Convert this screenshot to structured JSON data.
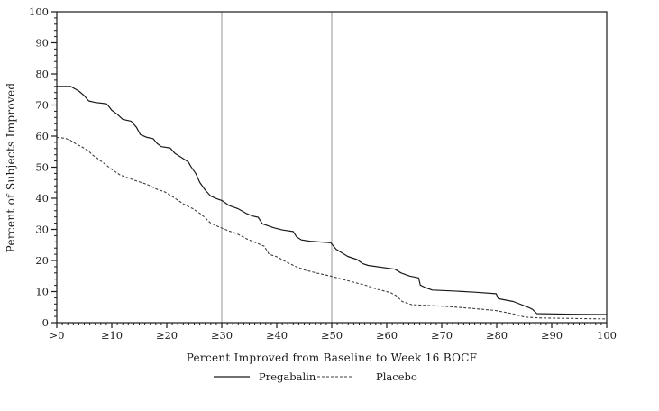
{
  "chart_data": {
    "type": "line",
    "title": "",
    "xlabel": "Percent Improved from Baseline to Week 16 BOCF",
    "ylabel": "Percent of Subjects Improved",
    "xlim": [
      0,
      100
    ],
    "ylim": [
      0,
      100
    ],
    "grid": false,
    "legend_position": "bottom",
    "x_tick_values": [
      0,
      10,
      20,
      30,
      40,
      50,
      60,
      70,
      80,
      90,
      100
    ],
    "x_tick_labels": [
      ">0",
      "≥10",
      "≥20",
      "≥30",
      "≥40",
      "≥50",
      "≥60",
      "≥70",
      "≥80",
      "≥90",
      "100"
    ],
    "y_tick_values": [
      0,
      10,
      20,
      30,
      40,
      50,
      60,
      70,
      80,
      90,
      100
    ],
    "y_tick_labels": [
      "0",
      "10",
      "20",
      "30",
      "40",
      "50",
      "60",
      "70",
      "80",
      "90",
      "100"
    ],
    "x_minor_tick_step": 1,
    "y_minor_tick_step": 2,
    "reference_lines_x": [
      30,
      50
    ],
    "series": [
      {
        "name": "Pregabalin",
        "style": "solid",
        "color": "#1a1a1a",
        "points": [
          [
            0,
            76
          ],
          [
            2.5,
            76
          ],
          [
            4,
            74.5
          ],
          [
            5,
            73
          ],
          [
            5.8,
            71.3
          ],
          [
            7,
            70.8
          ],
          [
            9,
            70.4
          ],
          [
            9.4,
            69.7
          ],
          [
            10,
            68.3
          ],
          [
            11,
            67
          ],
          [
            12,
            65.4
          ],
          [
            13.5,
            64.8
          ],
          [
            14.5,
            62.8
          ],
          [
            15.2,
            60.5
          ],
          [
            16.4,
            59.6
          ],
          [
            17.5,
            59.2
          ],
          [
            18.2,
            57.7
          ],
          [
            19,
            56.6
          ],
          [
            20.6,
            56.2
          ],
          [
            21.5,
            54.4
          ],
          [
            22.6,
            53.2
          ],
          [
            23.9,
            51.7
          ],
          [
            24.4,
            50.2
          ],
          [
            25.3,
            47.9
          ],
          [
            26,
            45.1
          ],
          [
            27,
            42.6
          ],
          [
            28,
            40.7
          ],
          [
            29,
            39.9
          ],
          [
            30,
            39.3
          ],
          [
            31.3,
            37.7
          ],
          [
            32.9,
            36.7
          ],
          [
            34.5,
            35.1
          ],
          [
            35.6,
            34.3
          ],
          [
            36.6,
            33.9
          ],
          [
            37.4,
            31.8
          ],
          [
            39.5,
            30.5
          ],
          [
            41.1,
            29.8
          ],
          [
            43,
            29.3
          ],
          [
            43.6,
            27.6
          ],
          [
            44.5,
            26.6
          ],
          [
            46,
            26.2
          ],
          [
            49.8,
            25.7
          ],
          [
            50.8,
            23.6
          ],
          [
            52.9,
            21.3
          ],
          [
            54.6,
            20.3
          ],
          [
            55.6,
            19
          ],
          [
            56.6,
            18.4
          ],
          [
            61.5,
            17.2
          ],
          [
            62.6,
            16
          ],
          [
            64.2,
            15
          ],
          [
            65.8,
            14.4
          ],
          [
            66.1,
            12.1
          ],
          [
            67,
            11.3
          ],
          [
            68.3,
            10.5
          ],
          [
            72,
            10.2
          ],
          [
            76,
            9.8
          ],
          [
            79.9,
            9.3
          ],
          [
            80.3,
            7.7
          ],
          [
            83,
            6.8
          ],
          [
            85.2,
            5.3
          ],
          [
            85.9,
            4.8
          ],
          [
            86.5,
            4.3
          ],
          [
            87.3,
            2.9
          ],
          [
            94,
            2.7
          ],
          [
            100,
            2.6
          ]
        ]
      },
      {
        "name": "Placebo",
        "style": "dashed",
        "color": "#3c3c3c",
        "points": [
          [
            0,
            59.6
          ],
          [
            1.5,
            59.3
          ],
          [
            2.5,
            58.6
          ],
          [
            3.5,
            57.5
          ],
          [
            4.9,
            56.2
          ],
          [
            6,
            54.8
          ],
          [
            6.6,
            53.8
          ],
          [
            8.2,
            51.8
          ],
          [
            9.9,
            49.4
          ],
          [
            11.5,
            47.5
          ],
          [
            13.2,
            46.4
          ],
          [
            14.8,
            45.4
          ],
          [
            16.4,
            44.5
          ],
          [
            18.1,
            43
          ],
          [
            19.7,
            42
          ],
          [
            21,
            40.6
          ],
          [
            22,
            39.4
          ],
          [
            23,
            38.2
          ],
          [
            24.7,
            36.7
          ],
          [
            26.3,
            34.8
          ],
          [
            28,
            32
          ],
          [
            29.6,
            30.7
          ],
          [
            31.3,
            29.5
          ],
          [
            32.9,
            28.5
          ],
          [
            34.5,
            27
          ],
          [
            36.2,
            25.7
          ],
          [
            37.7,
            24.6
          ],
          [
            38.6,
            22
          ],
          [
            40,
            21.2
          ],
          [
            41.9,
            19.4
          ],
          [
            43.6,
            17.9
          ],
          [
            45.2,
            16.9
          ],
          [
            47.4,
            15.9
          ],
          [
            49.8,
            15
          ],
          [
            51.8,
            14
          ],
          [
            54,
            13
          ],
          [
            56.2,
            12
          ],
          [
            58.4,
            10.7
          ],
          [
            60.6,
            9.7
          ],
          [
            61.7,
            8.7
          ],
          [
            62.8,
            6.8
          ],
          [
            64.5,
            5.8
          ],
          [
            70,
            5.3
          ],
          [
            74.8,
            4.7
          ],
          [
            79.8,
            3.9
          ],
          [
            82.8,
            2.9
          ],
          [
            85.1,
            1.8
          ],
          [
            88,
            1.5
          ],
          [
            100,
            1.2
          ]
        ]
      }
    ]
  },
  "colors": {
    "axis": "#1a1a1a",
    "reference_line": "#a6a6a6",
    "background": "#ffffff"
  }
}
